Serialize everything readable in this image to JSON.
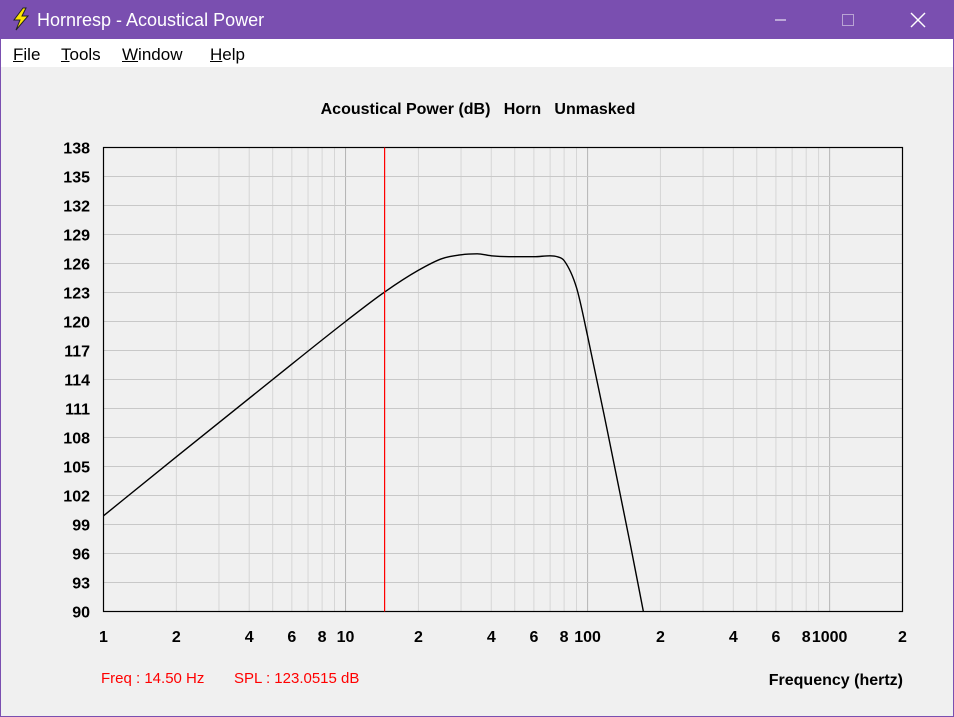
{
  "window": {
    "title": "Hornresp - Acoustical Power",
    "icon": "lightning-bolt-icon",
    "accent_color": "#7a4fb0"
  },
  "menu": {
    "items": [
      {
        "label": "File",
        "mnemonic": "F",
        "rest": "ile"
      },
      {
        "label": "Tools",
        "mnemonic": "T",
        "rest": "ools"
      },
      {
        "label": "Window",
        "mnemonic": "W",
        "rest": "indow"
      },
      {
        "label": "Help",
        "mnemonic": "H",
        "rest": "elp"
      }
    ]
  },
  "chart_data": {
    "type": "line",
    "title": "Acoustical Power (dB)   Horn   Unmasked",
    "xlabel": "Frequency (hertz)",
    "ylabel": "",
    "xscale": "log",
    "xlim": [
      1,
      2000
    ],
    "ylim": [
      90,
      138
    ],
    "grid": true,
    "yticks": [
      "138",
      "135",
      "132",
      "129",
      "126",
      "123",
      "120",
      "117",
      "114",
      "111",
      "108",
      "105",
      "102",
      "99",
      "96",
      "93",
      "90"
    ],
    "xtick_labels": [
      {
        "value": 1,
        "label": "1"
      },
      {
        "value": 2,
        "label": "2"
      },
      {
        "value": 4,
        "label": "4"
      },
      {
        "value": 6,
        "label": "6"
      },
      {
        "value": 8,
        "label": "8"
      },
      {
        "value": 10,
        "label": "10"
      },
      {
        "value": 20,
        "label": "2"
      },
      {
        "value": 40,
        "label": "4"
      },
      {
        "value": 60,
        "label": "6"
      },
      {
        "value": 80,
        "label": "8"
      },
      {
        "value": 100,
        "label": "100"
      },
      {
        "value": 200,
        "label": "2"
      },
      {
        "value": 400,
        "label": "4"
      },
      {
        "value": 600,
        "label": "6"
      },
      {
        "value": 800,
        "label": "8"
      },
      {
        "value": 1000,
        "label": "1000"
      },
      {
        "value": 2000,
        "label": "2"
      }
    ],
    "series": [
      {
        "color": "#000000",
        "x": [
          1,
          2,
          5,
          10,
          14.5,
          20,
          25,
          30,
          35,
          40,
          50,
          60,
          70,
          75,
          80,
          90,
          100,
          120,
          150,
          170
        ],
        "y": [
          99.9,
          106,
          114,
          120,
          123.05,
          125.3,
          126.5,
          126.9,
          127.0,
          126.8,
          126.7,
          126.7,
          126.8,
          126.7,
          126.3,
          123.5,
          118.5,
          109,
          97,
          90
        ]
      }
    ],
    "cursor": {
      "freq": 14.5,
      "color": "#ff0000"
    }
  },
  "status": {
    "freq_text": "Freq : 14.50 Hz",
    "spl_text": "SPL : 123.0515 dB",
    "color": "#ff0000"
  }
}
